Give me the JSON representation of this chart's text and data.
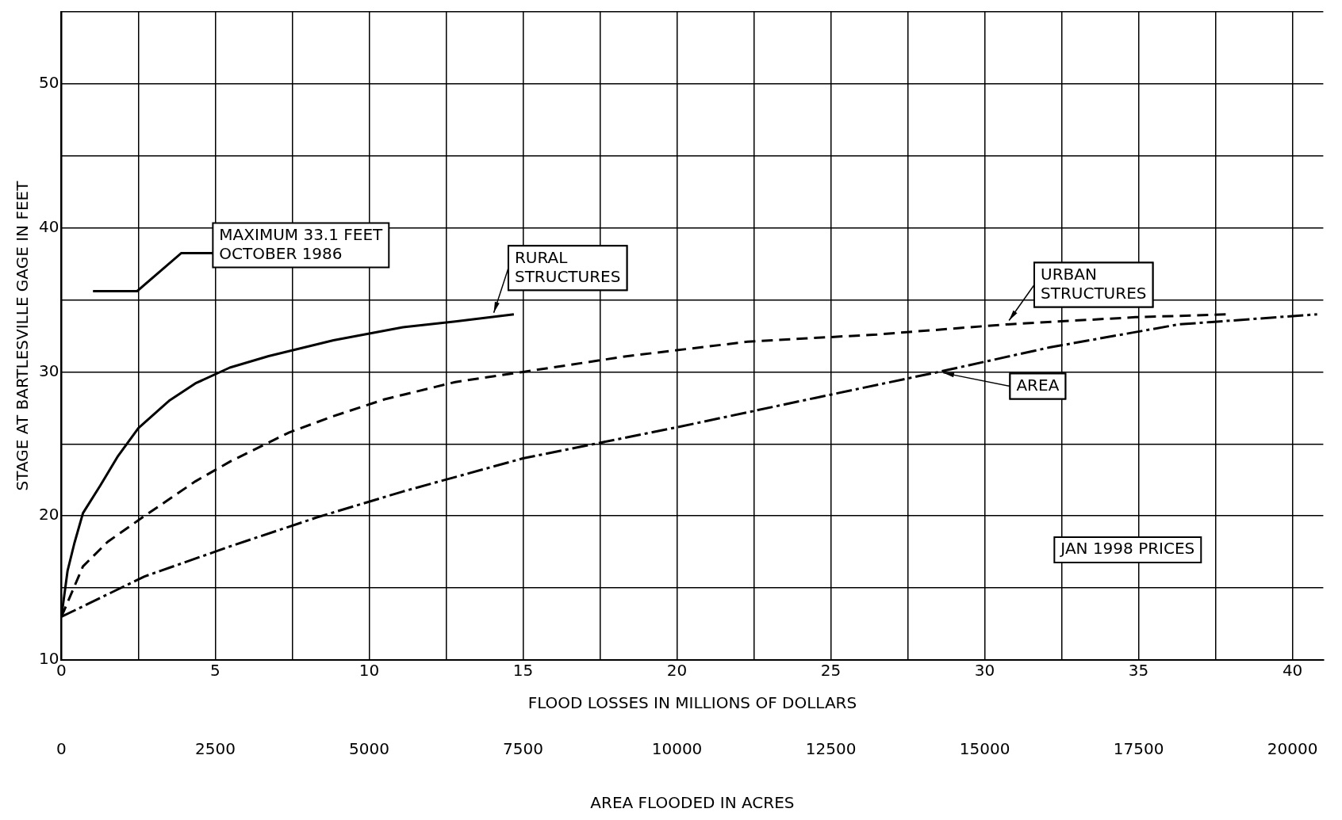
{
  "chart_data": {
    "type": "line",
    "xlabel": "FLOOD LOSSES IN MILLIONS OF DOLLARS",
    "x2label": "AREA FLOODED IN ACRES",
    "ylabel": "STAGE AT BARTLESVILLE GAGE IN FEET",
    "xlim": [
      0,
      41
    ],
    "xticks": [
      0,
      {
        "value": 2.5,
        "label": null
      },
      5,
      {
        "value": 7.5,
        "label": null
      },
      10,
      {
        "value": 12.5,
        "label": null
      },
      15,
      {
        "value": 17.5,
        "label": null
      },
      20,
      {
        "value": 22.5,
        "label": null
      },
      25,
      {
        "value": 27.5,
        "label": null
      },
      30,
      {
        "value": 32.5,
        "label": null
      },
      35,
      {
        "value": 37.5,
        "label": null
      },
      40
    ],
    "x2lim": [
      0,
      20500
    ],
    "x2ticks": [
      0,
      2500,
      5000,
      7500,
      10000,
      12500,
      15000,
      17500,
      20000
    ],
    "ylim": [
      10,
      55
    ],
    "yticks": [
      10,
      {
        "value": 15,
        "label": null
      },
      20,
      {
        "value": 25,
        "label": null
      },
      30,
      {
        "value": 35,
        "label": null
      },
      40,
      {
        "value": 45,
        "label": null
      },
      50,
      {
        "value": 55,
        "label": null
      }
    ],
    "grid": true,
    "marker": "none",
    "legend": false,
    "series": [
      {
        "color": "#000000",
        "line_style": "solid",
        "x": [
          0,
          0.2,
          0.42,
          0.7,
          1.26,
          1.82,
          2.5,
          3.5,
          4.35,
          5.47,
          6.73,
          8.84,
          11.1,
          12.8,
          14.7
        ],
        "values": [
          13,
          16.2,
          18.1,
          20.2,
          22.1,
          24.1,
          26.1,
          28,
          29.2,
          30.3,
          31.1,
          32.2,
          33.1,
          33.5,
          34
        ]
      },
      {
        "color": "#000000",
        "line_style": "dashed",
        "x": [
          0,
          0.7,
          1.5,
          2.7,
          4.35,
          5.5,
          7.4,
          8.8,
          10.5,
          12.8,
          15,
          18.4,
          22.3,
          26.5,
          30.7,
          34.9,
          37.9
        ],
        "values": [
          13,
          16.5,
          18.2,
          20,
          22.4,
          23.8,
          25.8,
          26.9,
          28.1,
          29.3,
          30,
          31.1,
          32.1,
          32.6,
          33.3,
          33.8,
          34
        ]
      },
      {
        "color": "#000000",
        "line_style": "dashdot",
        "axis": "x2",
        "x": [
          0,
          1350,
          2750,
          4150,
          5550,
          7500,
          10050,
          12250,
          14250,
          16050,
          18150,
          20400
        ],
        "values": [
          13,
          15.8,
          17.9,
          19.9,
          21.7,
          24,
          26.2,
          28.2,
          30,
          31.7,
          33.3,
          34
        ]
      }
    ],
    "annotations": [
      "MAXIMUM 33.1 FEET\nOCTOBER 1986",
      {
        "text": "RURAL\nSTRUCTURES",
        "x": 14,
        "y": 33.8
      },
      {
        "text": "URBAN\nSTRUCTURES",
        "x": 30.7,
        "y": 33.3
      },
      {
        "text": "AREA",
        "x": 28.5,
        "y": 30
      },
      "JAN 1998 PRICES"
    ]
  }
}
